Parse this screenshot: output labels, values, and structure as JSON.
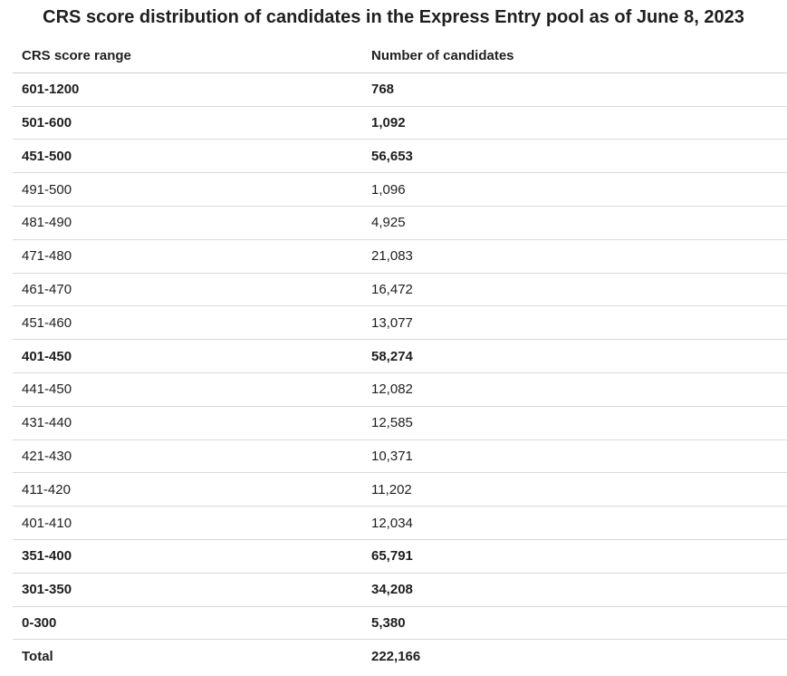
{
  "chart_data": {
    "type": "table",
    "title": "CRS score distribution of candidates in the Express Entry pool as of June 8, 2023",
    "columns": [
      "CRS score range",
      "Number of candidates"
    ],
    "rows": [
      {
        "range": "601-1200",
        "count": "768",
        "bold": true
      },
      {
        "range": "501-600",
        "count": "1,092",
        "bold": true
      },
      {
        "range": "451-500",
        "count": "56,653",
        "bold": true
      },
      {
        "range": "491-500",
        "count": "1,096",
        "bold": false
      },
      {
        "range": "481-490",
        "count": "4,925",
        "bold": false
      },
      {
        "range": "471-480",
        "count": "21,083",
        "bold": false
      },
      {
        "range": "461-470",
        "count": "16,472",
        "bold": false
      },
      {
        "range": "451-460",
        "count": "13,077",
        "bold": false
      },
      {
        "range": "401-450",
        "count": "58,274",
        "bold": true
      },
      {
        "range": "441-450",
        "count": "12,082",
        "bold": false
      },
      {
        "range": "431-440",
        "count": "12,585",
        "bold": false
      },
      {
        "range": "421-430",
        "count": "10,371",
        "bold": false
      },
      {
        "range": "411-420",
        "count": "11,202",
        "bold": false
      },
      {
        "range": "401-410",
        "count": "12,034",
        "bold": false
      },
      {
        "range": "351-400",
        "count": "65,791",
        "bold": true
      },
      {
        "range": "301-350",
        "count": "34,208",
        "bold": true
      },
      {
        "range": "0-300",
        "count": "5,380",
        "bold": true
      },
      {
        "range": "Total",
        "count": "222,166",
        "bold": true
      }
    ]
  }
}
